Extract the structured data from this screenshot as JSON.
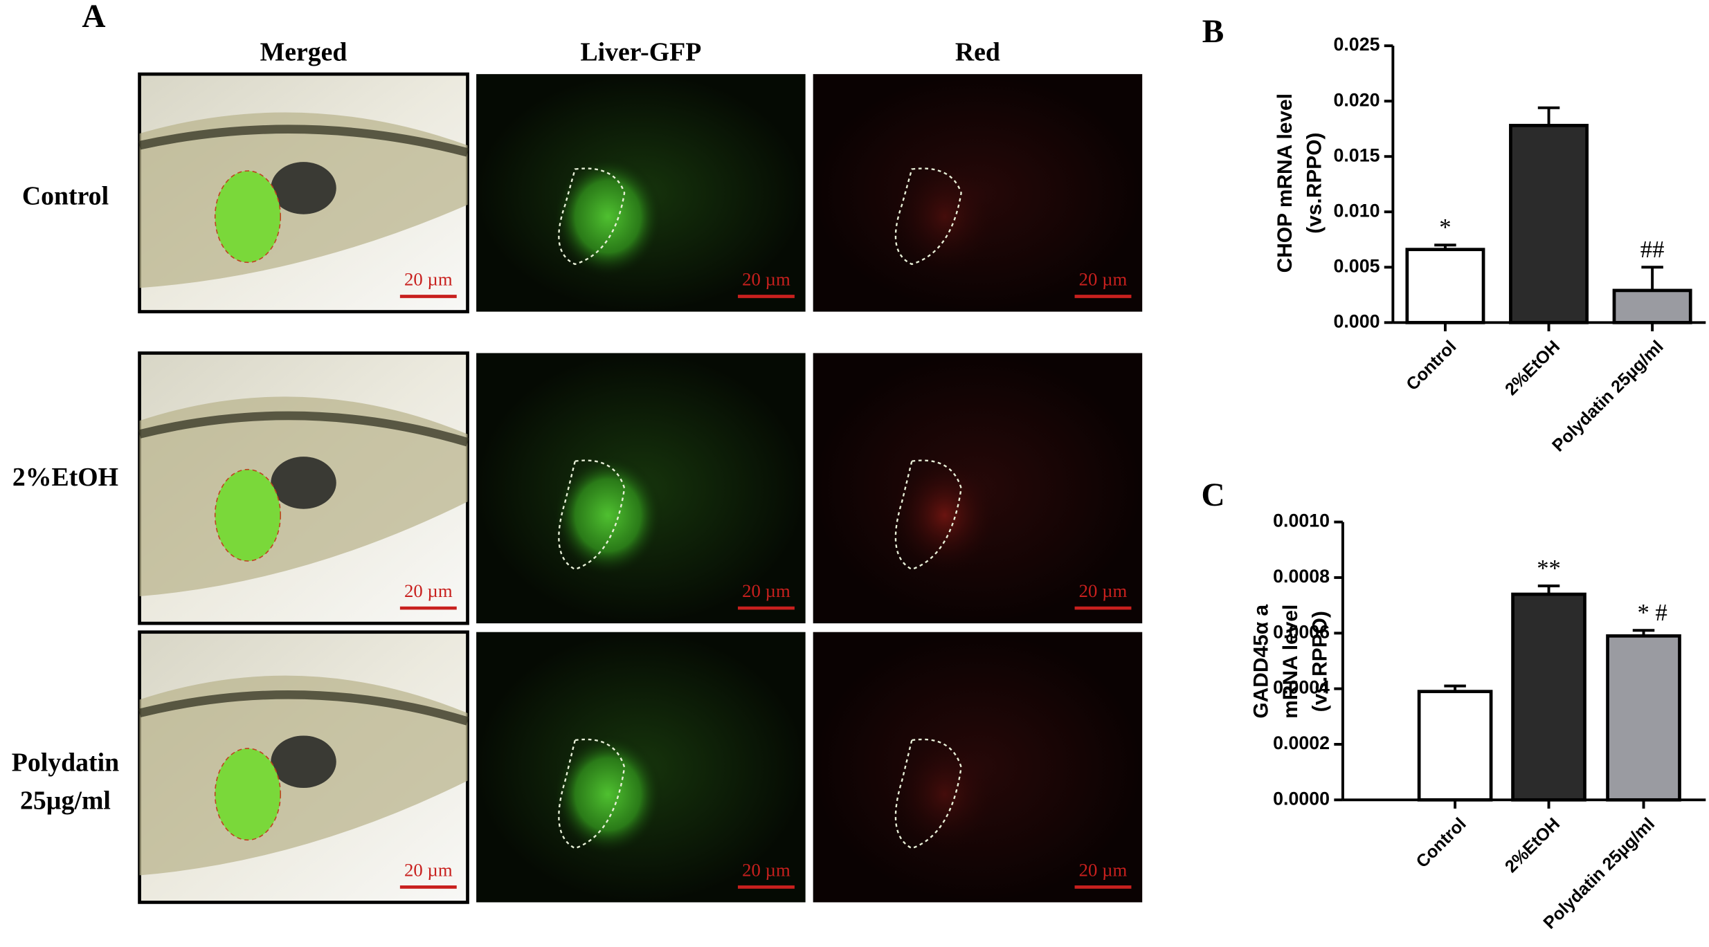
{
  "panel_a": {
    "label": "A",
    "columns": [
      "Merged",
      "Liver-GFP",
      "Red"
    ],
    "rows": [
      [
        "Control"
      ],
      [
        "2%EtOH"
      ],
      [
        "Polydatin",
        "25µg/ml"
      ]
    ],
    "scale_bar": "20 µm"
  },
  "chart_data": [
    {
      "type": "bar",
      "panel": "B",
      "ylabel": [
        "CHOP mRNA level",
        "(vs.RPPO)"
      ],
      "categories": [
        "Control",
        "2%EtOH",
        "Polydatin 25µg/ml"
      ],
      "values": [
        0.0066,
        0.0178,
        0.0029
      ],
      "errors": [
        0.0004,
        0.0016,
        0.0021
      ],
      "annotations": [
        "*",
        null,
        "##"
      ],
      "colors": [
        "#ffffff",
        "#2b2b2b",
        "#9a9ba1"
      ],
      "ylim": [
        0,
        0.025
      ],
      "yticks": [
        {
          "value": 0,
          "label": "0.000"
        },
        {
          "value": 0.005,
          "label": "0.005"
        },
        {
          "value": 0.01,
          "label": "0.010"
        },
        {
          "value": 0.015,
          "label": "0.015"
        },
        {
          "value": 0.02,
          "label": "0.020"
        },
        {
          "value": 0.025,
          "label": "0.025"
        }
      ]
    },
    {
      "type": "bar",
      "panel": "C",
      "ylabel": [
        "GADD45α a",
        "mRNA level",
        "(vs.RPPO)"
      ],
      "categories": [
        "Control",
        "2%EtOH",
        "Polydatin 25µg/ml"
      ],
      "values": [
        0.00039,
        0.00074,
        0.00059
      ],
      "errors": [
        2e-05,
        3e-05,
        2e-05
      ],
      "annotations": [
        null,
        "**",
        "* #"
      ],
      "colors": [
        "#ffffff",
        "#2b2b2b",
        "#9a9ba1"
      ],
      "ylim": [
        0,
        0.001
      ],
      "yticks": [
        {
          "value": 0,
          "label": "0.0000"
        },
        {
          "value": 0.0002,
          "label": "0.0002"
        },
        {
          "value": 0.0004,
          "label": "0.0004"
        },
        {
          "value": 0.0006,
          "label": "0.0006"
        },
        {
          "value": 0.0008,
          "label": "0.0008"
        },
        {
          "value": 0.001,
          "label": "0.0010"
        }
      ]
    }
  ]
}
